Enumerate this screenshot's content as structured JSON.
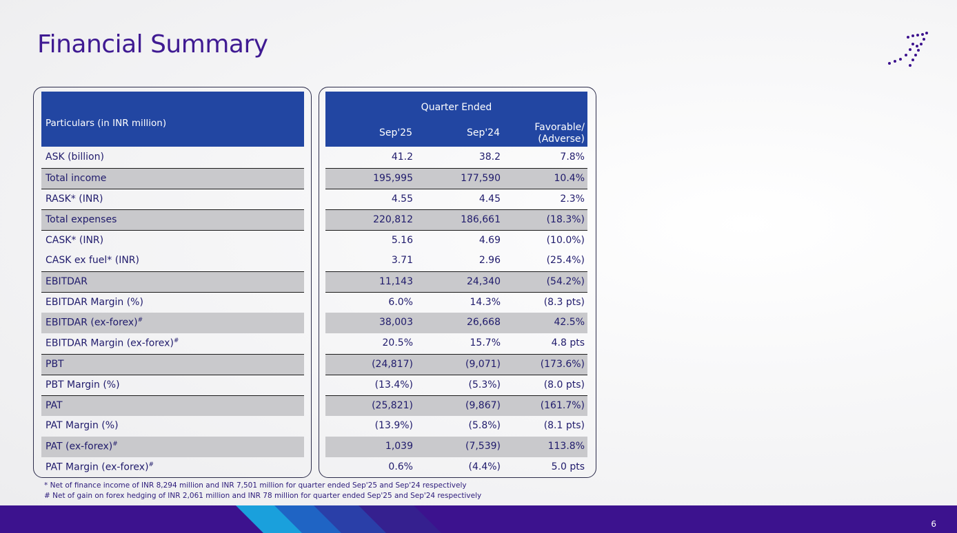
{
  "title": "Financial Summary",
  "header": {
    "particulars": "Particulars (in INR million)",
    "group": "Quarter Ended",
    "col1": "Sep'25",
    "col2": "Sep'24",
    "col3_line1": "Favorable/",
    "col3_line2": "(Adverse)"
  },
  "rows": [
    {
      "label": "ASK (billion)",
      "sup": "",
      "v1": "41.2",
      "v2": "38.2",
      "v3": "7.8%"
    },
    {
      "label": "Total income",
      "sup": "",
      "v1": "195,995",
      "v2": "177,590",
      "v3": "10.4%"
    },
    {
      "label": "RASK* (INR)",
      "sup": "",
      "v1": "4.55",
      "v2": "4.45",
      "v3": "2.3%"
    },
    {
      "label": "Total expenses",
      "sup": "",
      "v1": "220,812",
      "v2": "186,661",
      "v3": "(18.3%)"
    },
    {
      "label": "CASK* (INR)",
      "sup": "",
      "v1": "5.16",
      "v2": "4.69",
      "v3": "(10.0%)"
    },
    {
      "label": "CASK ex fuel* (INR)",
      "sup": "",
      "v1": "3.71",
      "v2": "2.96",
      "v3": "(25.4%)"
    },
    {
      "label": "EBITDAR",
      "sup": "",
      "v1": "11,143",
      "v2": "24,340",
      "v3": "(54.2%)"
    },
    {
      "label": "EBITDAR Margin (%)",
      "sup": "",
      "v1": "6.0%",
      "v2": "14.3%",
      "v3": "(8.3 pts)"
    },
    {
      "label": "EBITDAR (ex-forex)",
      "sup": "#",
      "v1": "38,003",
      "v2": "26,668",
      "v3": "42.5%"
    },
    {
      "label": "EBITDAR Margin (ex-forex)",
      "sup": "#",
      "v1": "20.5%",
      "v2": "15.7%",
      "v3": "4.8 pts"
    },
    {
      "label": "PBT",
      "sup": "",
      "v1": "(24,817)",
      "v2": "(9,071)",
      "v3": "(173.6%)"
    },
    {
      "label": "PBT Margin (%)",
      "sup": "",
      "v1": "(13.4%)",
      "v2": "(5.3%)",
      "v3": "(8.0 pts)"
    },
    {
      "label": "PAT",
      "sup": "",
      "v1": "(25,821)",
      "v2": "(9,867)",
      "v3": "(161.7%)"
    },
    {
      "label": "PAT Margin (%)",
      "sup": "",
      "v1": "(13.9%)",
      "v2": "(5.8%)",
      "v3": "(8.1 pts)"
    },
    {
      "label": "PAT (ex-forex)",
      "sup": "#",
      "v1": "1,039",
      "v2": "(7,539)",
      "v3": "113.8%"
    },
    {
      "label": "PAT Margin (ex-forex)",
      "sup": "#",
      "v1": "0.6%",
      "v2": "(4.4%)",
      "v3": "5.0 pts"
    }
  ],
  "notes": {
    "note1": "* Net of finance income of INR 8,294 million and INR 7,501 million for quarter ended Sep'25 and Sep'24 respectively",
    "note2": "#  Net of gain on forex hedging of INR 2,061 million and INR 78 million for quarter ended Sep'25 and Sep'24 respectively"
  },
  "page_number": "6",
  "colors": {
    "header_bg": "#2246a2",
    "title": "#3f1a92",
    "footer": "#3c128e",
    "shade": "#c9c9cc"
  }
}
